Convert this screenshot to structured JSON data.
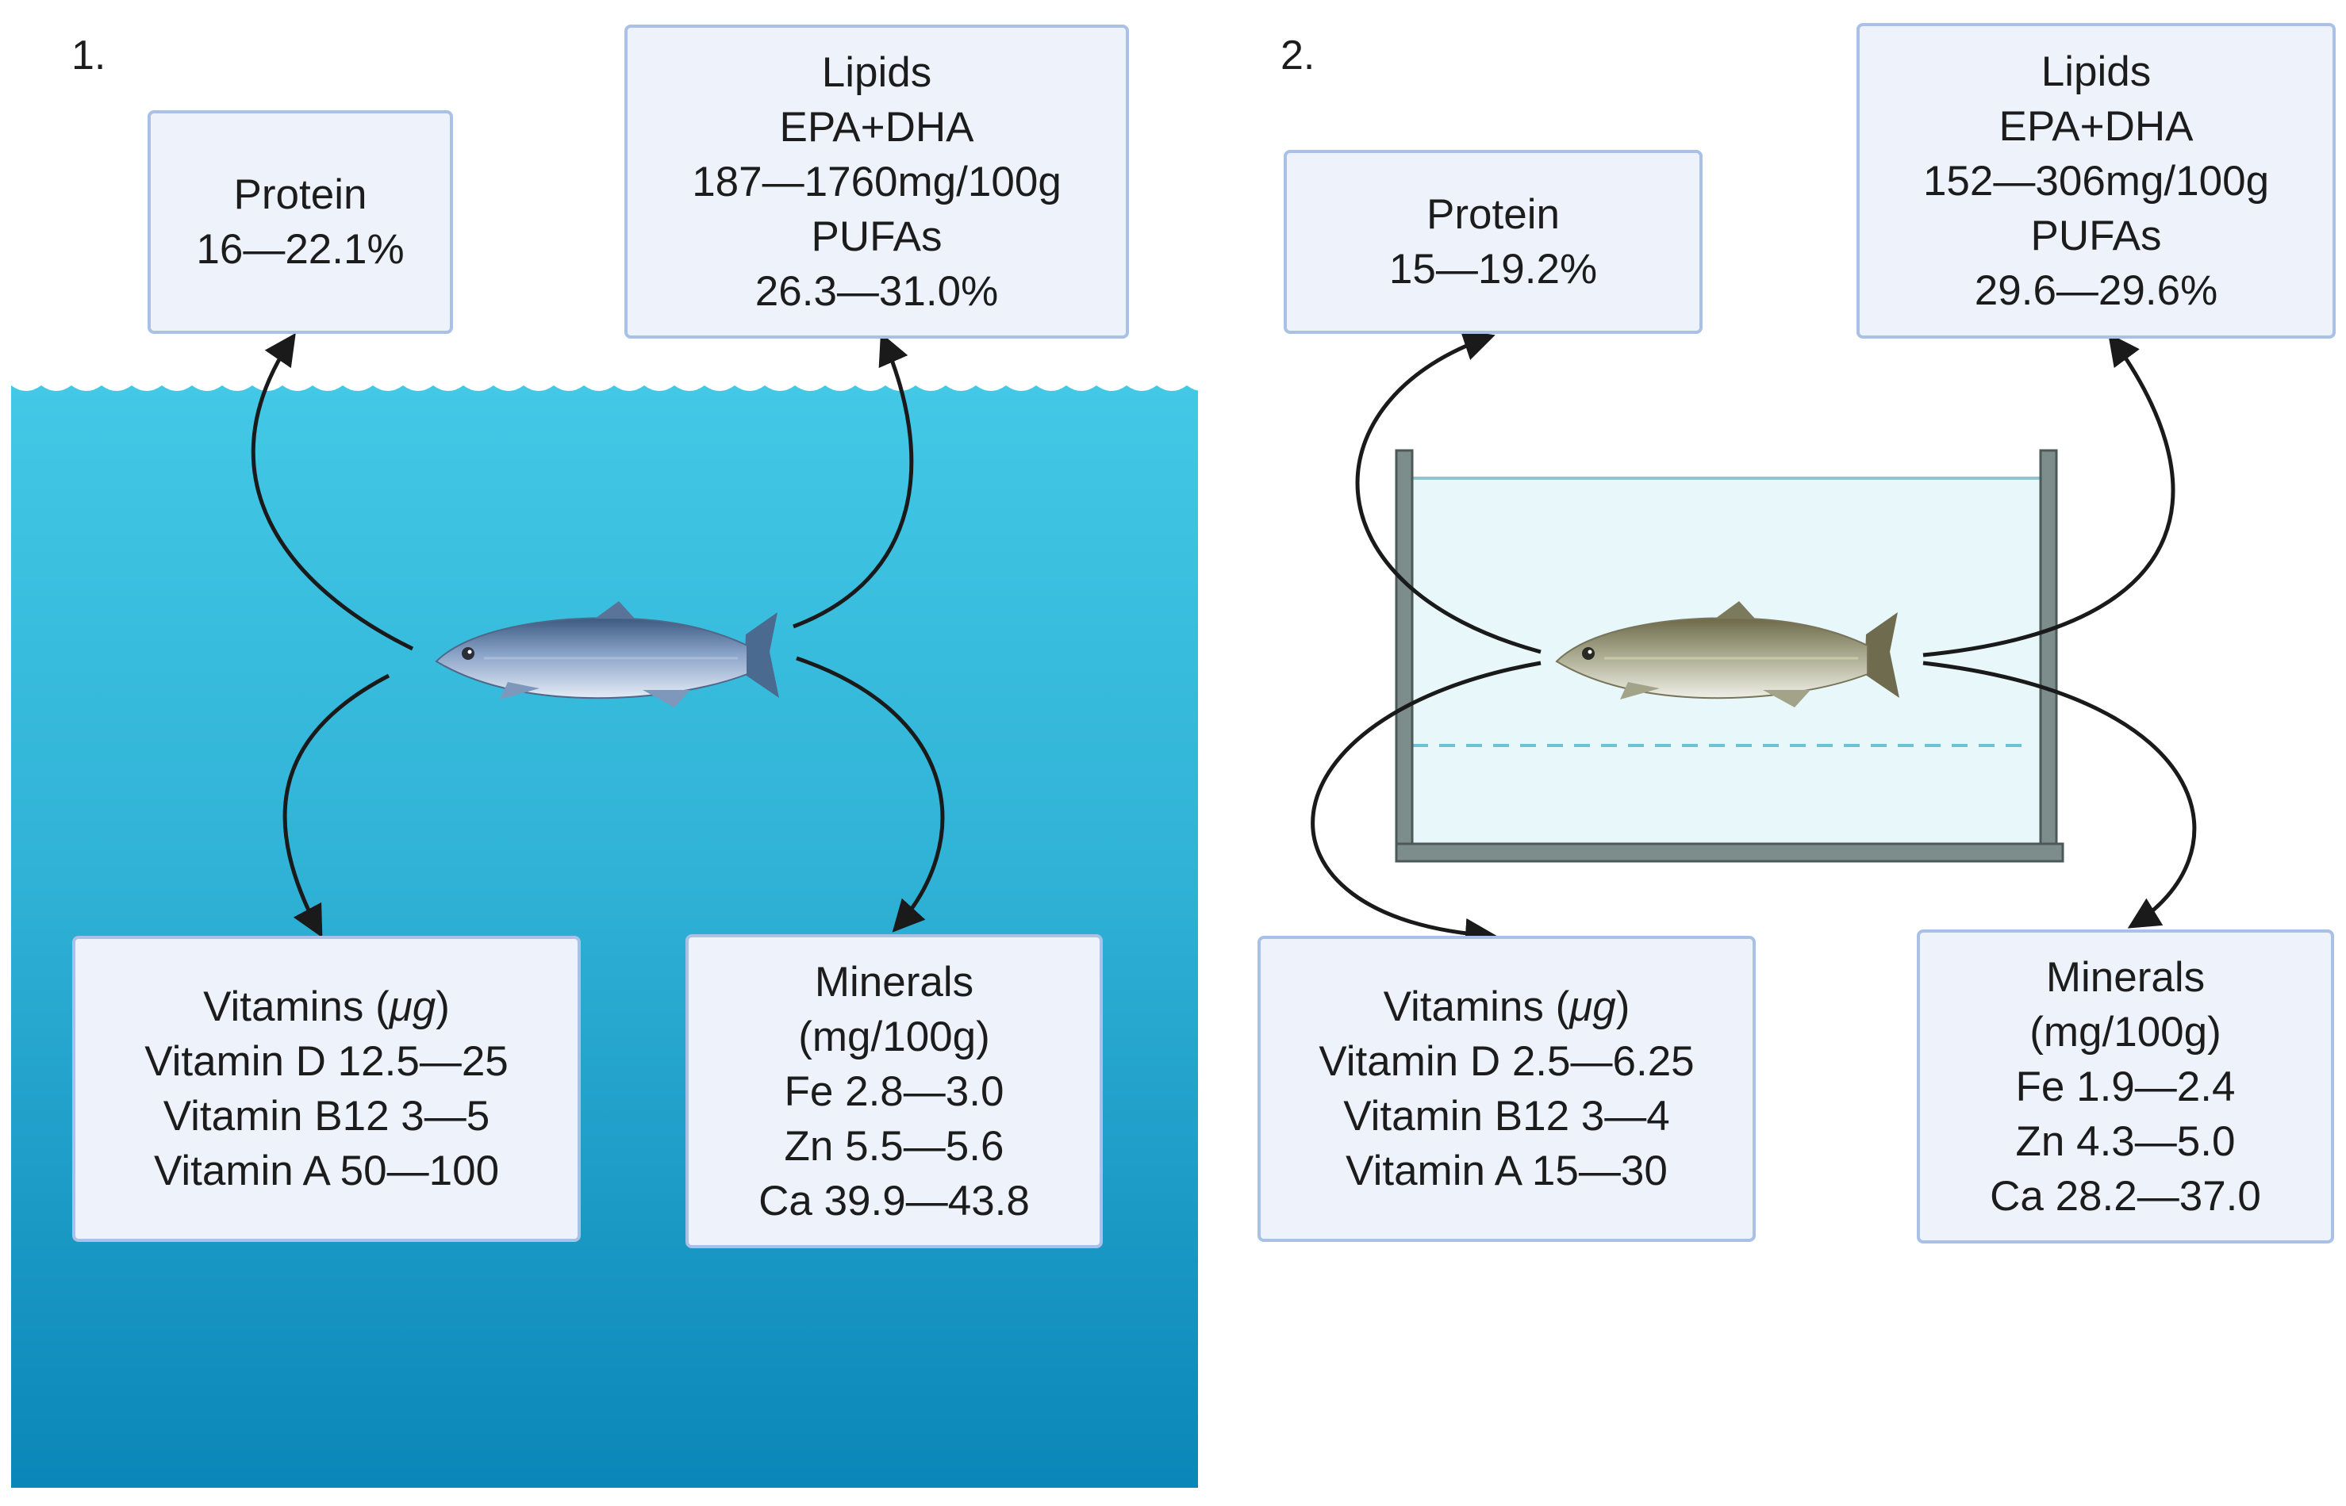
{
  "panels": [
    {
      "label": "1.",
      "environment": "wild",
      "protein": {
        "title": "Protein",
        "value": "16—22.1%"
      },
      "lipids": {
        "title": "Lipids",
        "epa_label": "EPA+DHA",
        "epa_value": "187—1760mg/100g",
        "pufa_label": "PUFAs",
        "pufa_value": "26.3—31.0%"
      },
      "vitamins": {
        "title": "Vitamins",
        "unit": "μg",
        "d": "Vitamin D 12.5—25",
        "b12": "Vitamin B12 3—5",
        "a": "Vitamin A 50—100"
      },
      "minerals": {
        "title": "Minerals",
        "unit": "(mg/100g)",
        "fe": "Fe 2.8—3.0",
        "zn": "Zn 5.5—5.6",
        "ca": "Ca 39.9—43.8"
      }
    },
    {
      "label": "2.",
      "environment": "farmed-tank",
      "protein": {
        "title": "Protein",
        "value": "15—19.2%"
      },
      "lipids": {
        "title": "Lipids",
        "epa_label": "EPA+DHA",
        "epa_value": "152—306mg/100g",
        "pufa_label": "PUFAs",
        "pufa_value": "29.6—29.6%"
      },
      "vitamins": {
        "title": "Vitamins",
        "unit": "μg",
        "d": "Vitamin D 2.5—6.25",
        "b12": "Vitamin B12 3—4",
        "a": "Vitamin A 15—30"
      },
      "minerals": {
        "title": "Minerals",
        "unit": "(mg/100g)",
        "fe": "Fe 1.9—2.4",
        "zn": "Zn 4.3—5.0",
        "ca": "Ca 28.2—37.0"
      }
    }
  ],
  "colors": {
    "box_fill": "#edf2fb",
    "box_border": "#a9c1e6",
    "ocean_top": "#43c8e6",
    "ocean_bottom": "#0b86b8",
    "tank_frame": "#6b7b7b",
    "tank_water": "#e8f7fa",
    "arrow": "#1a1a1a"
  }
}
